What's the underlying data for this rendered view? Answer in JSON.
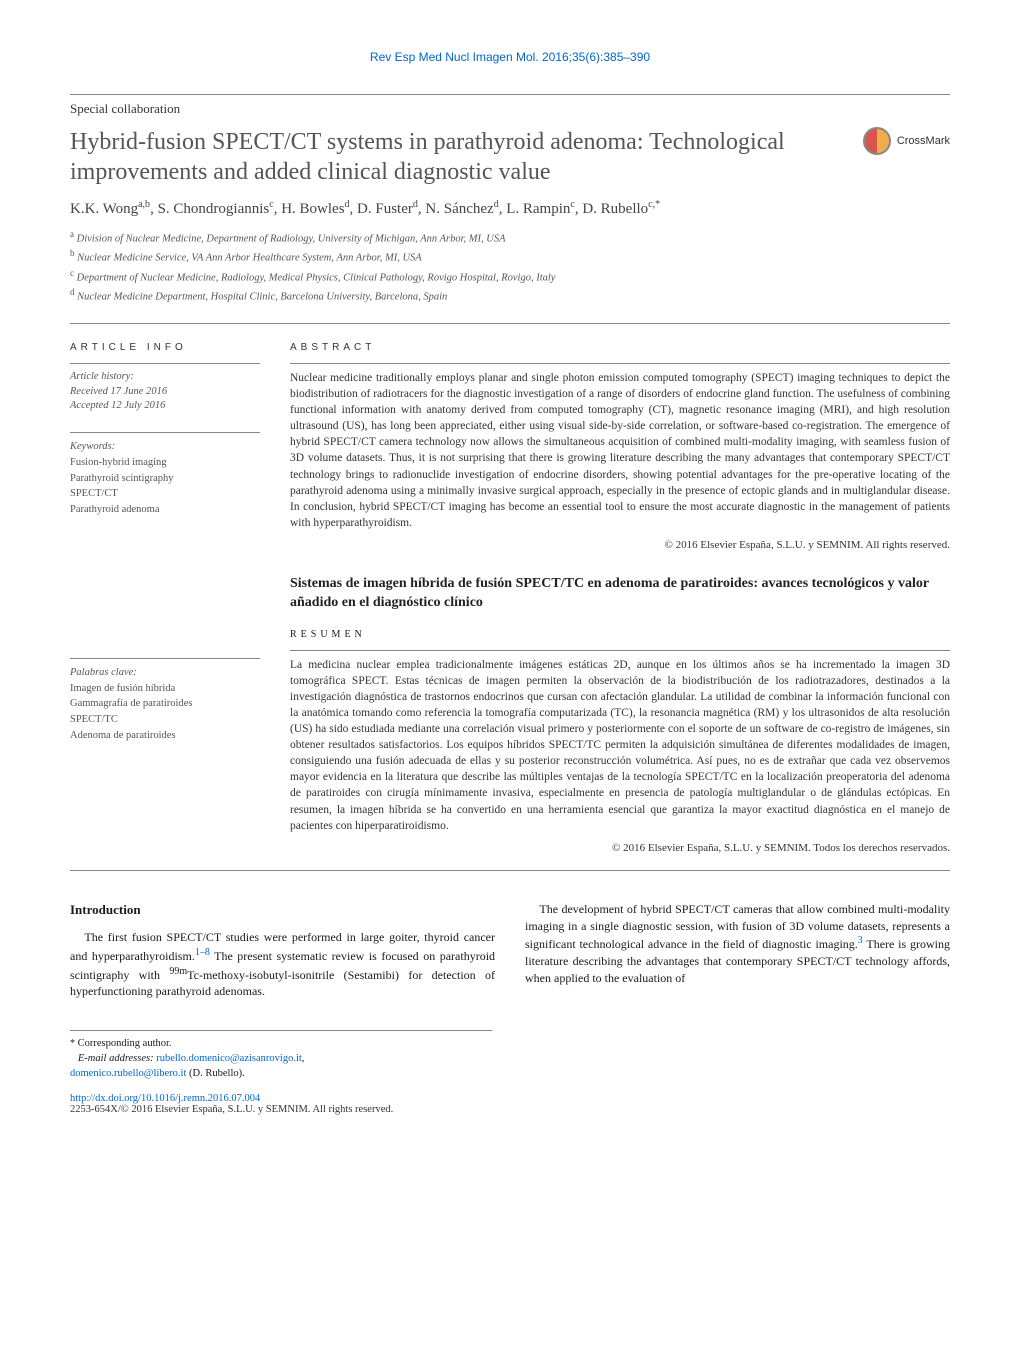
{
  "journal_ref": "Rev Esp Med Nucl Imagen Mol. 2016;35(6):385–390",
  "article_type": "Special collaboration",
  "title": "Hybrid-fusion SPECT/CT systems in parathyroid adenoma: Technological improvements and added clinical diagnostic value",
  "crossmark_label": "CrossMark",
  "authors_html": "K.K. Wong<sup>a,b</sup>, S. Chondrogiannis<sup>c</sup>, H. Bowles<sup>d</sup>, D. Fuster<sup>d</sup>, N. Sánchez<sup>d</sup>, L. Rampin<sup>c</sup>, D. Rubello<sup>c,*</sup>",
  "affiliations": [
    {
      "marker": "a",
      "text": "Division of Nuclear Medicine, Department of Radiology, University of Michigan, Ann Arbor, MI, USA"
    },
    {
      "marker": "b",
      "text": "Nuclear Medicine Service, VA Ann Arbor Healthcare System, Ann Arbor, MI, USA"
    },
    {
      "marker": "c",
      "text": "Department of Nuclear Medicine, Radiology, Medical Physics, Clinical Pathology, Rovigo Hospital, Rovigo, Italy"
    },
    {
      "marker": "d",
      "text": "Nuclear Medicine Department, Hospital Clinic, Barcelona University, Barcelona, Spain"
    }
  ],
  "info_label": "ARTICLE INFO",
  "abstract_label": "ABSTRACT",
  "history": {
    "label": "Article history:",
    "received": "Received 17 June 2016",
    "accepted": "Accepted 12 July 2016"
  },
  "keywords": {
    "label": "Keywords:",
    "items": [
      "Fusion-hybrid imaging",
      "Parathyroid scintigraphy",
      "SPECT/CT",
      "Parathyroid adenoma"
    ]
  },
  "abstract_en": "Nuclear medicine traditionally employs planar and single photon emission computed tomography (SPECT) imaging techniques to depict the biodistribution of radiotracers for the diagnostic investigation of a range of disorders of endocrine gland function. The usefulness of combining functional information with anatomy derived from computed tomography (CT), magnetic resonance imaging (MRI), and high resolution ultrasound (US), has long been appreciated, either using visual side-by-side correlation, or software-based co-registration. The emergence of hybrid SPECT/CT camera technology now allows the simultaneous acquisition of combined multi-modality imaging, with seamless fusion of 3D volume datasets. Thus, it is not surprising that there is growing literature describing the many advantages that contemporary SPECT/CT technology brings to radionuclide investigation of endocrine disorders, showing potential advantages for the pre-operative locating of the parathyroid adenoma using a minimally invasive surgical approach, especially in the presence of ectopic glands and in multiglandular disease. In conclusion, hybrid SPECT/CT imaging has become an essential tool to ensure the most accurate diagnostic in the management of patients with hyperparathyroidism.",
  "copyright_en": "© 2016 Elsevier España, S.L.U. y SEMNIM. All rights reserved.",
  "title_es": "Sistemas de imagen híbrida de fusión SPECT/TC en adenoma de paratiroides: avances tecnológicos y valor añadido en el diagnóstico clínico",
  "resumen_label": "RESUMEN",
  "palabras": {
    "label": "Palabras clave:",
    "items": [
      "Imagen de fusión híbrida",
      "Gammagrafía de paratiroides",
      "SPECT/TC",
      "Adenoma de paratiroides"
    ]
  },
  "abstract_es": "La medicina nuclear emplea tradicionalmente imágenes estáticas 2D, aunque en los últimos años se ha incrementado la imagen 3D tomográfica SPECT. Estas técnicas de imagen permiten la observación de la biodistribución de los radiotrazadores, destinados a la investigación diagnóstica de trastornos endocrinos que cursan con afectación glandular. La utilidad de combinar la información funcional con la anatómica tomando como referencia la tomografía computarizada (TC), la resonancia magnética (RM) y los ultrasonidos de alta resolución (US) ha sido estudiada mediante una correlación visual primero y posteriormente con el soporte de un software de co-registro de imágenes, sin obtener resultados satisfactorios. Los equipos híbridos SPECT/TC permiten la adquisición simultánea de diferentes modalidades de imagen, consiguiendo una fusión adecuada de ellas y su posterior reconstrucción volumétrica. Así pues, no es de extrañar que cada vez observemos mayor evidencia en la literatura que describe las múltiples ventajas de la tecnología SPECT/TC en la localización preoperatoria del adenoma de paratiroides con cirugía mínimamente invasiva, especialmente en presencia de patología multiglandular o de glándulas ectópicas. En resumen, la imagen híbrida se ha convertido en una herramienta esencial que garantiza la mayor exactitud diagnóstica en el manejo de pacientes con hiperparatiroidismo.",
  "copyright_es": "© 2016 Elsevier España, S.L.U. y SEMNIM. Todos los derechos reservados.",
  "intro_heading": "Introduction",
  "intro_p1_a": "The first fusion SPECT/CT studies were performed in large goiter, thyroid cancer and hyperparathyroidism.",
  "intro_p1_ref": "1–8",
  "intro_p1_b": " The present",
  "intro_p2_a": "systematic review is focused on parathyroid scintigraphy with ",
  "intro_p2_iso": "99m",
  "intro_p2_b": "Tc-methoxy-isobutyl-isonitrile (Sestamibi) for detection of hyperfunctioning parathyroid adenomas.",
  "intro_p3_a": "The development of hybrid SPECT/CT cameras that allow combined multi-modality imaging in a single diagnostic session, with fusion of 3D volume datasets, represents a significant technological advance in the field of diagnostic imaging.",
  "intro_p3_ref": "3",
  "intro_p3_b": " There is growing literature describing the advantages that contemporary SPECT/CT technology affords, when applied to the evaluation of",
  "footnote": {
    "star": "*",
    "corresponding": "Corresponding author.",
    "email_label": "E-mail addresses:",
    "email1": "rubello.domenico@azisanrovigo.it",
    "email2": "domenico.rubello@libero.it",
    "author_name": "(D. Rubello)."
  },
  "doi": {
    "url": "http://dx.doi.org/10.1016/j.remn.2016.07.004",
    "issn_copyright": "2253-654X/© 2016 Elsevier España, S.L.U. y SEMNIM. All rights reserved."
  },
  "colors": {
    "link": "#0066cc",
    "text": "#1a1a1a",
    "muted": "#555555",
    "rule": "#888888",
    "background": "#ffffff"
  },
  "fonts": {
    "body_family": "Georgia, Times New Roman, serif",
    "sans_family": "Arial, sans-serif",
    "title_size_pt": 18,
    "body_size_pt": 9,
    "abstract_size_pt": 8.5
  }
}
